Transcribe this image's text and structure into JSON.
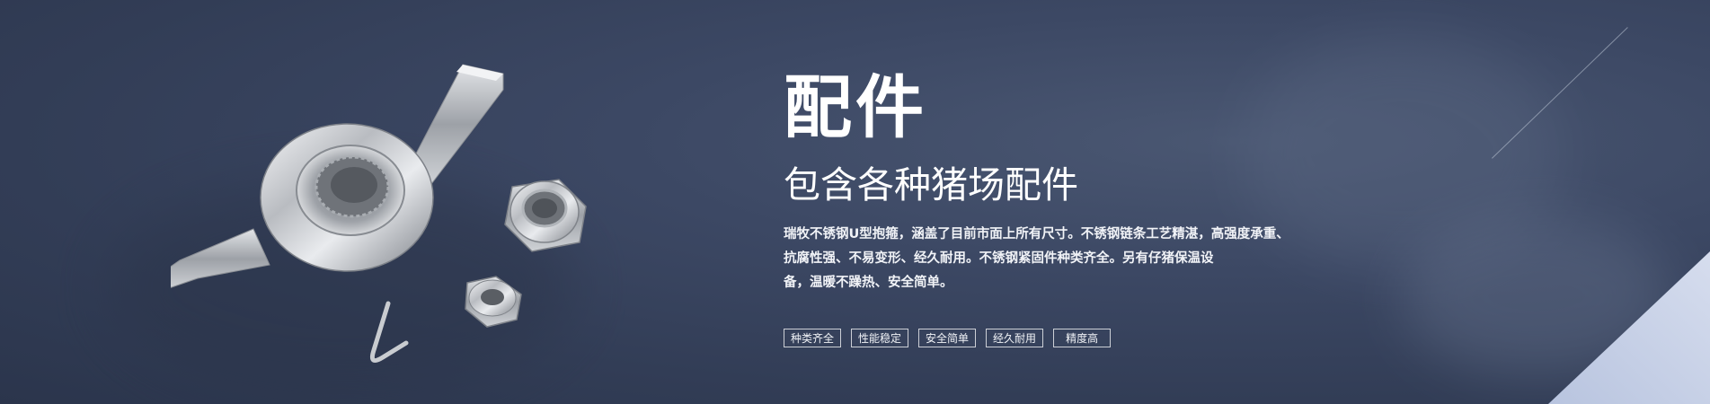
{
  "banner": {
    "title": "配件",
    "subtitle": "包含各种猪场配件",
    "description_lines": [
      "瑞牧不锈钢U型抱箍，涵盖了目前市面上所有尺寸。不锈钢链条工艺精湛，高强度承重、",
      "抗腐性强、不易变形、经久耐用。不锈钢紧固件种类齐全。另有仔猪保温设",
      "备，温暖不躁热、安全简单。"
    ],
    "tags": [
      "种类齐全",
      "性能稳定",
      "安全简单",
      "经久耐用",
      "精度高"
    ],
    "product_image": [
      "wing-nut-icon",
      "hex-nut-icon",
      "u-clip-icon"
    ]
  },
  "colors": {
    "background": "#36425c",
    "text": "#ffffff",
    "corner_accent": "#c5cfe6"
  }
}
